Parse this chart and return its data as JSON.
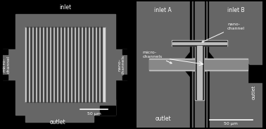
{
  "bg_color": "#000000",
  "dark_gray": "#222222",
  "mid_gray": "#666666",
  "light_gray": "#aaaaaa",
  "bright_area": "#d8d8d8",
  "nano_dark": "#333333",
  "white": "#ffffff",
  "left_panel": {
    "inlet_text": "inlet",
    "outlet_text": "outlet",
    "microchannel_text": "micro-\nchannel",
    "nanochannels_text": "nano-\nchannels",
    "scale_text": "50 μm",
    "num_nanochannels": 22,
    "substrate_color": "#666666",
    "bright_color": "#d8d8d8",
    "nano_color": "#444444"
  },
  "right_panel": {
    "inlet_a_text": "inlet A",
    "inlet_b_text": "inlet B",
    "outlet_text": "outlet",
    "outlet2_text": "outlet",
    "nanochannel_text": "nano-\nchannel",
    "microchannel_text": "micro-\nchannels",
    "scale_text": "50 μm",
    "bg_gray": "#666666",
    "nano_light": "#bbbbbb",
    "nano_dark": "#2a2a2a"
  }
}
